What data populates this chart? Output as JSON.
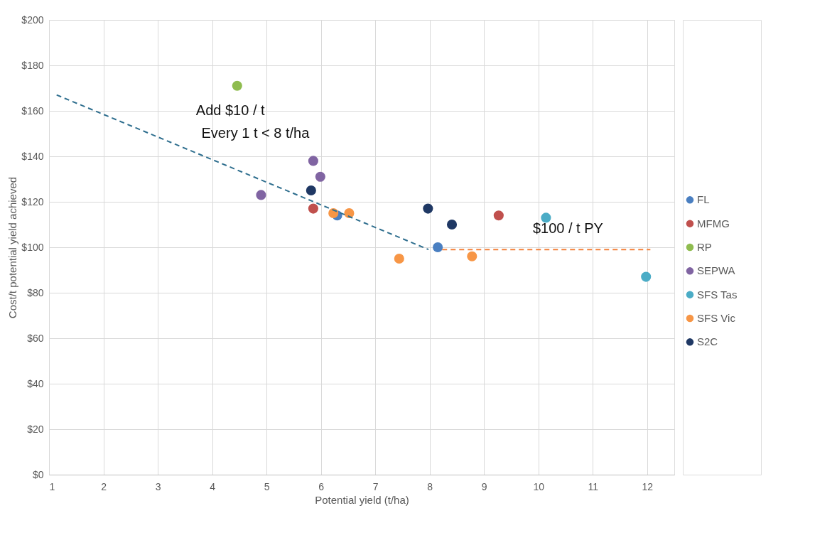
{
  "chart_data": {
    "type": "scatter",
    "xlabel": "Potential yield (t/ha)",
    "ylabel": "Cost/t potential yield achieved",
    "xlim": [
      1,
      12.5
    ],
    "xticks": [
      {
        "value": 1,
        "label": "1"
      },
      {
        "value": 2,
        "label": "2"
      },
      {
        "value": 3,
        "label": "3"
      },
      {
        "value": 4,
        "label": "4"
      },
      {
        "value": 5,
        "label": "5"
      },
      {
        "value": 6,
        "label": "6"
      },
      {
        "value": 7,
        "label": "7"
      },
      {
        "value": 8,
        "label": "8"
      },
      {
        "value": 9,
        "label": "9"
      },
      {
        "value": 10,
        "label": "10"
      },
      {
        "value": 11,
        "label": "11"
      },
      {
        "value": 12,
        "label": "12"
      }
    ],
    "ylim": [
      0,
      200
    ],
    "yticks": [
      {
        "value": 0,
        "label": "$0"
      },
      {
        "value": 20,
        "label": "$20"
      },
      {
        "value": 40,
        "label": "$40"
      },
      {
        "value": 60,
        "label": "$60"
      },
      {
        "value": 80,
        "label": "$80"
      },
      {
        "value": 100,
        "label": "$100"
      },
      {
        "value": 120,
        "label": "$120"
      },
      {
        "value": 140,
        "label": "$140"
      },
      {
        "value": 160,
        "label": "$160"
      },
      {
        "value": 180,
        "label": "$180"
      },
      {
        "value": 200,
        "label": "$200"
      }
    ],
    "grid": true,
    "legend": "right",
    "marker": "circle",
    "series": [
      {
        "name": "FL",
        "color": "#4a7fc1",
        "x": [
          6.3,
          8.15
        ],
        "values": [
          114,
          100
        ]
      },
      {
        "name": "MFMG",
        "color": "#c0504d",
        "x": [
          5.86,
          9.27
        ],
        "values": [
          117,
          114
        ]
      },
      {
        "name": "RP",
        "color": "#8fbc4f",
        "x": [
          4.46
        ],
        "values": [
          171
        ]
      },
      {
        "name": "SEPWA",
        "color": "#8064a2",
        "x": [
          4.9,
          5.86,
          5.99
        ],
        "values": [
          123,
          138,
          131
        ]
      },
      {
        "name": "SFS Tas",
        "color": "#4bacc6",
        "x": [
          10.14,
          11.98
        ],
        "values": [
          113,
          87
        ]
      },
      {
        "name": "SFS Vic",
        "color": "#f79646",
        "x": [
          6.23,
          6.52,
          7.44,
          8.78
        ],
        "values": [
          115,
          115,
          95,
          96
        ]
      },
      {
        "name": "S2C",
        "color": "#1f3864",
        "x": [
          5.82,
          7.97,
          8.41
        ],
        "values": [
          125,
          117,
          110
        ]
      },
      {
        "type": "line",
        "color": "#2e6e8e",
        "line_style": "dashed",
        "marker": "none",
        "x": [
          1.14,
          7.98
        ],
        "values": [
          167,
          99
        ]
      },
      {
        "type": "line",
        "color": "#f4813a",
        "line_style": "dashed",
        "marker": "none",
        "x": [
          8.23,
          12.06
        ],
        "values": [
          99,
          99
        ]
      }
    ],
    "annotations": [
      "Add $10 / t",
      "Every 1 t < 8 t/ha",
      "$100 / t PY"
    ]
  }
}
